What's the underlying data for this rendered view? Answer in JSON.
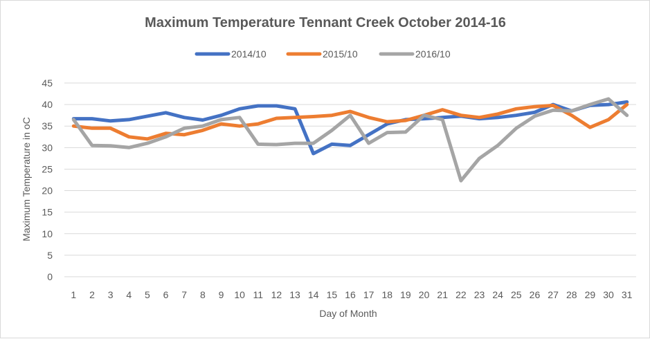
{
  "chart_data": {
    "type": "line",
    "title": "Maximum Temperature Tennant Creek October 2014-16",
    "xlabel": "Day of Month",
    "ylabel": "Maximum Temperature in oC",
    "ylim": [
      0,
      45
    ],
    "y_ticks": [
      0,
      5,
      10,
      15,
      20,
      25,
      30,
      35,
      40,
      45
    ],
    "grid": true,
    "legend_position": "top",
    "categories": [
      1,
      2,
      3,
      4,
      5,
      6,
      7,
      8,
      9,
      10,
      11,
      12,
      13,
      14,
      15,
      16,
      17,
      18,
      19,
      20,
      21,
      22,
      23,
      24,
      25,
      26,
      27,
      28,
      29,
      30,
      31
    ],
    "series": [
      {
        "name": "2014/10",
        "color": "#4472c4",
        "values": [
          36.7,
          36.7,
          36.2,
          36.5,
          37.3,
          38.1,
          37.0,
          36.4,
          37.5,
          39.0,
          39.7,
          39.7,
          39.0,
          28.6,
          30.8,
          30.5,
          33.0,
          35.5,
          36.5,
          36.7,
          37.0,
          37.3,
          36.7,
          37.0,
          37.5,
          38.2,
          40.0,
          38.5,
          39.8,
          40.0,
          40.6
        ]
      },
      {
        "name": "2015/10",
        "color": "#ed7d31",
        "values": [
          35.0,
          34.5,
          34.5,
          32.5,
          32.0,
          33.3,
          33.0,
          34.0,
          35.5,
          35.0,
          35.5,
          36.8,
          37.0,
          37.2,
          37.5,
          38.4,
          37.0,
          36.0,
          36.3,
          37.5,
          38.8,
          37.5,
          37.0,
          37.8,
          39.0,
          39.5,
          39.8,
          37.5,
          34.7,
          36.5,
          40.0
        ]
      },
      {
        "name": "2016/10",
        "color": "#a5a5a5",
        "values": [
          36.5,
          30.5,
          30.4,
          30.0,
          31.0,
          32.5,
          34.5,
          35.0,
          36.5,
          37.0,
          30.8,
          30.7,
          31.0,
          31.0,
          34.0,
          37.5,
          31.0,
          33.5,
          33.6,
          37.5,
          36.5,
          22.3,
          27.5,
          30.5,
          34.5,
          37.3,
          38.7,
          38.5,
          40.0,
          41.3,
          37.5
        ]
      }
    ]
  }
}
